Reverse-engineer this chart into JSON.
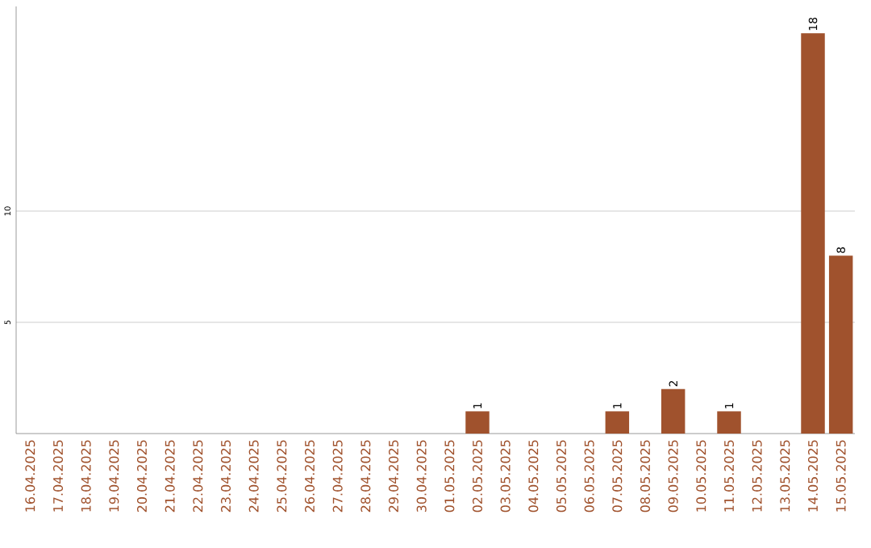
{
  "chart_data": {
    "type": "bar",
    "categories": [
      "16.04.2025",
      "17.04.2025",
      "18.04.2025",
      "19.04.2025",
      "20.04.2025",
      "21.04.2025",
      "22.04.2025",
      "23.04.2025",
      "24.04.2025",
      "25.04.2025",
      "26.04.2025",
      "27.04.2025",
      "28.04.2025",
      "29.04.2025",
      "30.04.2025",
      "01.05.2025",
      "02.05.2025",
      "03.05.2025",
      "04.05.2025",
      "05.05.2025",
      "06.05.2025",
      "07.05.2025",
      "08.05.2025",
      "09.05.2025",
      "10.05.2025",
      "11.05.2025",
      "12.05.2025",
      "13.05.2025",
      "14.05.2025",
      "15.05.2025"
    ],
    "values": [
      0,
      0,
      0,
      0,
      0,
      0,
      0,
      0,
      0,
      0,
      0,
      0,
      0,
      0,
      0,
      0,
      1,
      0,
      0,
      0,
      0,
      1,
      0,
      2,
      0,
      1,
      0,
      0,
      18,
      8
    ],
    "value_labels": [
      null,
      null,
      null,
      null,
      null,
      null,
      null,
      null,
      null,
      null,
      null,
      null,
      null,
      null,
      null,
      null,
      "1",
      null,
      null,
      null,
      null,
      "1",
      null,
      "2",
      null,
      "1",
      null,
      null,
      "18",
      "8"
    ],
    "color": "#a0522d",
    "ylim": [
      0,
      19.2
    ],
    "yticks": [
      5,
      10
    ],
    "grid": "y"
  }
}
